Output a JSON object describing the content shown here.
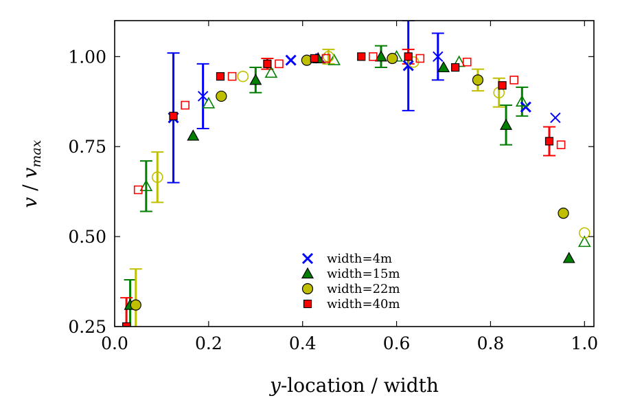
{
  "chart_data": {
    "type": "scatter",
    "title": "",
    "xlabel_italic": "y",
    "xlabel_rest": "-location / width",
    "ylabel_v": "v",
    "ylabel_sep": " / ",
    "ylabel_vmax": "v",
    "ylabel_vmax_sub": "max",
    "xlim": [
      0.0,
      1.02
    ],
    "ylim": [
      0.25,
      1.1
    ],
    "x_ticks": [
      0.0,
      0.2,
      0.4,
      0.6,
      0.8,
      1.0
    ],
    "x_tick_labels": [
      "0.0",
      "0.2",
      "0.4",
      "0.6",
      "0.8",
      "1.0"
    ],
    "y_ticks": [
      0.25,
      0.5,
      0.75,
      1.0
    ],
    "y_tick_labels": [
      "0.25",
      "0.50",
      "0.75",
      "1.00"
    ],
    "grid": false,
    "legend_position": "lower-center",
    "series": [
      {
        "name": "width=4m",
        "marker": "x",
        "color": "#0000ff",
        "points": [
          {
            "x": 0.125,
            "y": 0.83,
            "err": 0.18,
            "filled": true
          },
          {
            "x": 0.188,
            "y": 0.89,
            "err": 0.09,
            "filled": false
          },
          {
            "x": 0.375,
            "y": 0.99,
            "err": 0.0,
            "filled": true
          },
          {
            "x": 0.438,
            "y": 0.995,
            "err": 0.0,
            "filled": false
          },
          {
            "x": 0.625,
            "y": 0.975,
            "err": 0.125,
            "filled": true
          },
          {
            "x": 0.688,
            "y": 1.0,
            "err": 0.065,
            "filled": false
          },
          {
            "x": 0.875,
            "y": 0.86,
            "err": 0.0,
            "filled": true
          },
          {
            "x": 0.938,
            "y": 0.83,
            "err": 0.0,
            "filled": false
          }
        ]
      },
      {
        "name": "width=15m",
        "marker": "triangle",
        "color": "#007f00",
        "points": [
          {
            "x": 0.033,
            "y": 0.31,
            "err": 0.07,
            "filled": true
          },
          {
            "x": 0.067,
            "y": 0.64,
            "err": 0.07,
            "filled": false
          },
          {
            "x": 0.167,
            "y": 0.78,
            "err": 0.0,
            "filled": true
          },
          {
            "x": 0.2,
            "y": 0.87,
            "err": 0.0,
            "filled": false
          },
          {
            "x": 0.3,
            "y": 0.935,
            "err": 0.035,
            "filled": true
          },
          {
            "x": 0.333,
            "y": 0.955,
            "err": 0.0,
            "filled": false
          },
          {
            "x": 0.433,
            "y": 0.995,
            "err": 0.0,
            "filled": true
          },
          {
            "x": 0.467,
            "y": 0.99,
            "err": 0.0,
            "filled": false
          },
          {
            "x": 0.567,
            "y": 1.0,
            "err": 0.03,
            "filled": true
          },
          {
            "x": 0.6,
            "y": 1.0,
            "err": 0.0,
            "filled": false
          },
          {
            "x": 0.7,
            "y": 0.97,
            "err": 0.0,
            "filled": true
          },
          {
            "x": 0.733,
            "y": 0.985,
            "err": 0.0,
            "filled": false
          },
          {
            "x": 0.833,
            "y": 0.81,
            "err": 0.055,
            "filled": true
          },
          {
            "x": 0.867,
            "y": 0.875,
            "err": 0.04,
            "filled": false
          },
          {
            "x": 0.967,
            "y": 0.44,
            "err": 0.0,
            "filled": true
          },
          {
            "x": 1.0,
            "y": 0.485,
            "err": 0.0,
            "filled": false
          }
        ]
      },
      {
        "name": "width=22m",
        "marker": "circle",
        "color": "#bfbf00",
        "points": [
          {
            "x": 0.045,
            "y": 0.31,
            "err": 0.1,
            "filled": true
          },
          {
            "x": 0.091,
            "y": 0.665,
            "err": 0.07,
            "filled": false
          },
          {
            "x": 0.227,
            "y": 0.89,
            "err": 0.0,
            "filled": true
          },
          {
            "x": 0.273,
            "y": 0.945,
            "err": 0.0,
            "filled": false
          },
          {
            "x": 0.409,
            "y": 0.99,
            "err": 0.0,
            "filled": true
          },
          {
            "x": 0.455,
            "y": 1.0,
            "err": 0.02,
            "filled": false
          },
          {
            "x": 0.591,
            "y": 0.995,
            "err": 0.0,
            "filled": true
          },
          {
            "x": 0.636,
            "y": 0.985,
            "err": 0.0,
            "filled": false
          },
          {
            "x": 0.773,
            "y": 0.935,
            "err": 0.03,
            "filled": true
          },
          {
            "x": 0.818,
            "y": 0.9,
            "err": 0.04,
            "filled": false
          },
          {
            "x": 0.955,
            "y": 0.565,
            "err": 0.0,
            "filled": true
          },
          {
            "x": 1.0,
            "y": 0.51,
            "err": 0.0,
            "filled": false
          }
        ]
      },
      {
        "name": "width=40m",
        "marker": "square",
        "color": "#ff0000",
        "points": [
          {
            "x": 0.025,
            "y": 0.25,
            "err": 0.08,
            "filled": true
          },
          {
            "x": 0.05,
            "y": 0.63,
            "err": 0.0,
            "filled": false
          },
          {
            "x": 0.125,
            "y": 0.835,
            "err": 0.0,
            "filled": true
          },
          {
            "x": 0.15,
            "y": 0.865,
            "err": 0.0,
            "filled": false
          },
          {
            "x": 0.225,
            "y": 0.945,
            "err": 0.0,
            "filled": true
          },
          {
            "x": 0.25,
            "y": 0.945,
            "err": 0.0,
            "filled": false
          },
          {
            "x": 0.325,
            "y": 0.98,
            "err": 0.015,
            "filled": true
          },
          {
            "x": 0.35,
            "y": 0.98,
            "err": 0.0,
            "filled": false
          },
          {
            "x": 0.425,
            "y": 0.995,
            "err": 0.0,
            "filled": true
          },
          {
            "x": 0.45,
            "y": 0.995,
            "err": 0.0,
            "filled": false
          },
          {
            "x": 0.525,
            "y": 1.0,
            "err": 0.0,
            "filled": true
          },
          {
            "x": 0.55,
            "y": 1.0,
            "err": 0.0,
            "filled": false
          },
          {
            "x": 0.625,
            "y": 1.0,
            "err": 0.02,
            "filled": true
          },
          {
            "x": 0.65,
            "y": 0.995,
            "err": 0.0,
            "filled": false
          },
          {
            "x": 0.725,
            "y": 0.97,
            "err": 0.0,
            "filled": true
          },
          {
            "x": 0.75,
            "y": 0.985,
            "err": 0.0,
            "filled": false
          },
          {
            "x": 0.825,
            "y": 0.92,
            "err": 0.0,
            "filled": true
          },
          {
            "x": 0.85,
            "y": 0.935,
            "err": 0.0,
            "filled": false
          },
          {
            "x": 0.925,
            "y": 0.765,
            "err": 0.04,
            "filled": true
          },
          {
            "x": 0.95,
            "y": 0.755,
            "err": 0.0,
            "filled": false
          }
        ]
      }
    ]
  }
}
